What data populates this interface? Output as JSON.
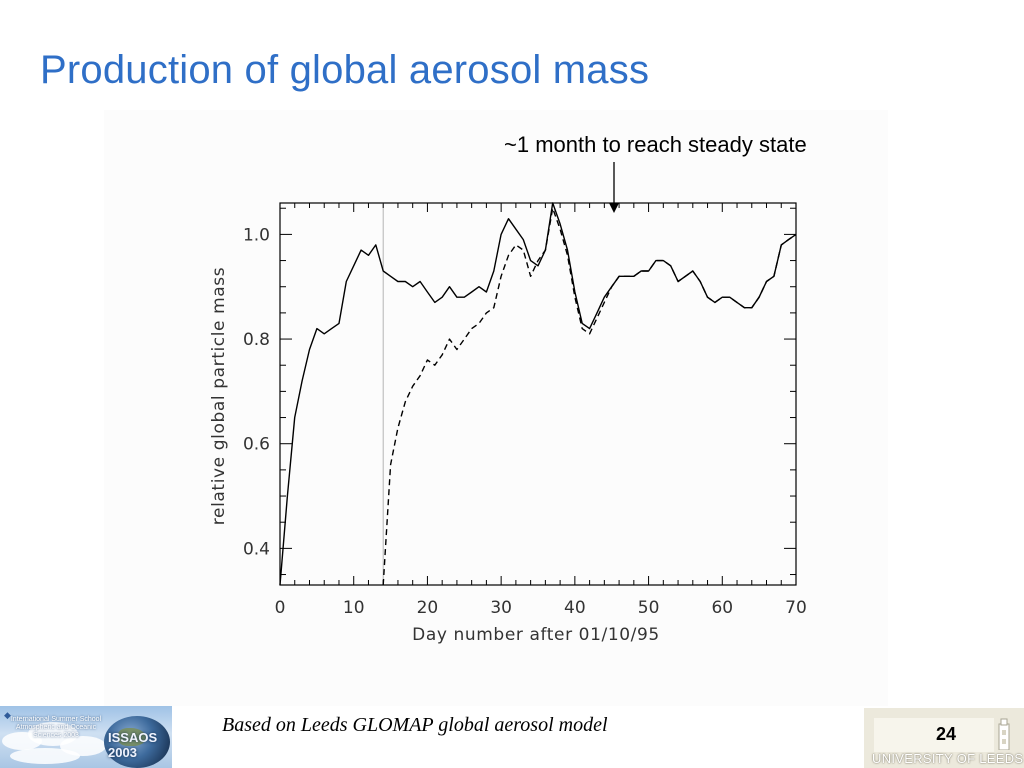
{
  "slide": {
    "title": "Production of global aerosol mass",
    "annotation": "~1 month to reach steady state",
    "caption": "Based on Leeds GLOMAP global aerosol model",
    "page_number": "24",
    "university": "UNIVERSITY OF LEEDS",
    "logo_text": "International Summer School Atmospheric and Oceanic Sciences 2003",
    "logo_badge": "ISSAOS 2003"
  },
  "colors": {
    "title": "#2f6fc7",
    "line": "#000000",
    "marker_line": "#b5b5b5"
  },
  "chart_data": {
    "type": "line",
    "title": "",
    "xlabel": "Day number after 01/10/95",
    "ylabel": "relative global particle mass",
    "xlim": [
      0,
      70
    ],
    "ylim": [
      0.33,
      1.06
    ],
    "xticks": [
      0,
      10,
      20,
      30,
      40,
      50,
      60,
      70
    ],
    "yticks": [
      0.4,
      0.6,
      0.8,
      1.0
    ],
    "ytick_labels": [
      "0.4",
      "0.6",
      "0.8",
      "1.0"
    ],
    "grid": false,
    "vertical_marker_x": 14,
    "series": [
      {
        "style": "solid",
        "x": [
          0,
          1,
          2,
          3,
          4,
          5,
          6,
          7,
          8,
          9,
          10,
          11,
          12,
          13,
          14,
          15,
          16,
          17,
          18,
          19,
          20,
          21,
          22,
          23,
          24,
          25,
          26,
          27,
          28,
          29,
          30,
          31,
          32,
          33,
          34,
          35,
          36,
          37,
          38,
          39,
          40,
          41,
          42,
          43,
          44,
          45,
          46,
          47,
          48,
          49,
          50,
          51,
          52,
          53,
          54,
          55,
          56,
          57,
          58,
          59,
          60,
          61,
          62,
          63,
          64,
          65,
          66,
          67,
          68,
          69,
          70
        ],
        "y": [
          0.33,
          0.5,
          0.65,
          0.72,
          0.78,
          0.82,
          0.81,
          0.82,
          0.83,
          0.91,
          0.94,
          0.97,
          0.96,
          0.98,
          0.93,
          0.92,
          0.91,
          0.91,
          0.9,
          0.91,
          0.89,
          0.87,
          0.88,
          0.9,
          0.88,
          0.88,
          0.89,
          0.9,
          0.89,
          0.93,
          1.0,
          1.03,
          1.01,
          0.99,
          0.95,
          0.94,
          0.97,
          1.06,
          1.02,
          0.97,
          0.89,
          0.83,
          0.82,
          0.85,
          0.88,
          0.9,
          0.92,
          0.92,
          0.92,
          0.93,
          0.93,
          0.95,
          0.95,
          0.94,
          0.91,
          0.92,
          0.93,
          0.91,
          0.88,
          0.87,
          0.88,
          0.88,
          0.87,
          0.86,
          0.86,
          0.88,
          0.91,
          0.92,
          0.98,
          0.99,
          1.0
        ]
      },
      {
        "style": "dashed",
        "x": [
          14,
          15,
          16,
          17,
          18,
          19,
          20,
          21,
          22,
          23,
          24,
          25,
          26,
          27,
          28,
          29,
          30,
          31,
          32,
          33,
          34,
          35,
          36,
          37,
          38,
          39,
          40,
          41,
          42,
          43,
          44,
          45,
          46,
          47,
          48,
          49,
          50,
          51,
          52,
          53,
          54,
          55,
          56,
          57,
          58,
          59,
          60,
          61,
          62,
          63,
          64,
          65,
          66,
          67,
          68,
          69,
          70
        ],
        "y": [
          0.33,
          0.56,
          0.63,
          0.68,
          0.71,
          0.73,
          0.76,
          0.75,
          0.77,
          0.8,
          0.78,
          0.8,
          0.82,
          0.83,
          0.85,
          0.86,
          0.92,
          0.96,
          0.98,
          0.97,
          0.92,
          0.95,
          0.97,
          1.05,
          1.01,
          0.96,
          0.88,
          0.82,
          0.81,
          0.84,
          0.87,
          0.9,
          0.92,
          0.92,
          0.92,
          0.93,
          0.93,
          0.95,
          0.95,
          0.94,
          0.91,
          0.92,
          0.93,
          0.91,
          0.88,
          0.87,
          0.88,
          0.88,
          0.87,
          0.86,
          0.86,
          0.88,
          0.91,
          0.92,
          0.98,
          0.99,
          1.0
        ]
      }
    ]
  }
}
